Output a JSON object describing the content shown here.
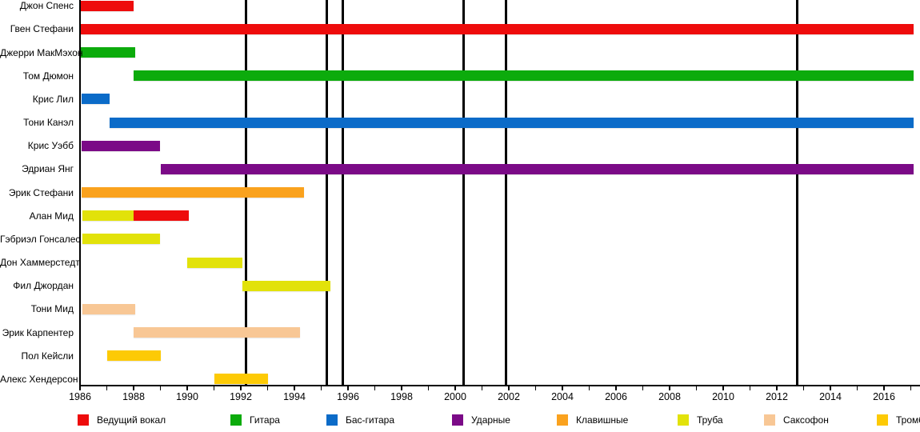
{
  "chart_data": {
    "type": "bar",
    "subtype": "gantt-timeline (band membership)",
    "title": "",
    "xlabel": "",
    "ylabel": "",
    "grid": false,
    "legend_position": "bottom",
    "x_axis": {
      "min": 1986,
      "max": 2017.4,
      "minor_tick_interval_years": 1,
      "tick_labels": [
        "1986",
        "1988",
        "1990",
        "1992",
        "1994",
        "1996",
        "1998",
        "2000",
        "2002",
        "2004",
        "2006",
        "2008",
        "2010",
        "2012",
        "2014",
        "2016"
      ],
      "tick_label_years": [
        1986,
        1988,
        1990,
        1992,
        1994,
        1996,
        1998,
        2000,
        2002,
        2004,
        2006,
        2008,
        2010,
        2012,
        2014,
        2016
      ]
    },
    "event_lines_years": [
      1992.2,
      1995.2,
      1995.8,
      2000.3,
      2001.9,
      2012.75
    ],
    "legend": [
      {
        "label": "Ведущий вокал",
        "color": "#ee0c0c"
      },
      {
        "label": "Гитара",
        "color": "#0cab0c"
      },
      {
        "label": "Бас-гитара",
        "color": "#0b6bc8"
      },
      {
        "label": "Ударные",
        "color": "#7b0a87"
      },
      {
        "label": "Клавишные",
        "color": "#faa21e"
      },
      {
        "label": "Труба",
        "color": "#e2e20a"
      },
      {
        "label": "Саксофон",
        "color": "#f8c795"
      },
      {
        "label": "Тромбон",
        "color": "#fdca05"
      }
    ],
    "members": [
      {
        "name": "Джон Спенс",
        "segments": [
          {
            "role": "Ведущий вокал",
            "start": 1986.0,
            "end": 1988.0
          }
        ]
      },
      {
        "name": "Гвен Стефани",
        "segments": [
          {
            "role": "Ведущий вокал",
            "start": 1986.0,
            "end": 2017.1
          }
        ]
      },
      {
        "name": "Джерри МакМэхон",
        "segments": [
          {
            "role": "Гитара",
            "start": 1986.0,
            "end": 1988.05
          }
        ]
      },
      {
        "name": "Том Дюмон",
        "segments": [
          {
            "role": "Гитара",
            "start": 1988.0,
            "end": 2017.1
          }
        ]
      },
      {
        "name": "Крис Лил",
        "segments": [
          {
            "role": "Бас-гитара",
            "start": 1986.05,
            "end": 1987.1
          }
        ]
      },
      {
        "name": "Тони Канэл",
        "segments": [
          {
            "role": "Бас-гитара",
            "start": 1987.1,
            "end": 2017.1
          }
        ]
      },
      {
        "name": "Крис Уэбб",
        "segments": [
          {
            "role": "Ударные",
            "start": 1986.05,
            "end": 1989.0
          }
        ]
      },
      {
        "name": "Эдриан Янг",
        "segments": [
          {
            "role": "Ударные",
            "start": 1989.0,
            "end": 2017.1
          }
        ]
      },
      {
        "name": "Эрик Стефани",
        "segments": [
          {
            "role": "Клавишные",
            "start": 1986.05,
            "end": 1994.35
          }
        ]
      },
      {
        "name": "Алан Мид",
        "segments": [
          {
            "role": "Труба",
            "start": 1986.1,
            "end": 1988.0
          },
          {
            "role": "Ведущий вокал",
            "start": 1988.0,
            "end": 1990.05
          }
        ]
      },
      {
        "name": "Гэбриэл Гонсалес",
        "segments": [
          {
            "role": "Труба",
            "start": 1986.1,
            "end": 1989.0
          }
        ]
      },
      {
        "name": "Дон Хаммерстедт",
        "segments": [
          {
            "role": "Труба",
            "start": 1990.0,
            "end": 1992.05
          }
        ]
      },
      {
        "name": "Фил Джордан",
        "segments": [
          {
            "role": "Труба",
            "start": 1992.05,
            "end": 1995.35
          }
        ]
      },
      {
        "name": "Тони Мид",
        "segments": [
          {
            "role": "Саксофон",
            "start": 1986.1,
            "end": 1988.05
          }
        ]
      },
      {
        "name": "Эрик Карпентер",
        "segments": [
          {
            "role": "Саксофон",
            "start": 1988.0,
            "end": 1994.2
          }
        ]
      },
      {
        "name": "Пол Кейсли",
        "segments": [
          {
            "role": "Тромбон",
            "start": 1987.0,
            "end": 1989.0
          }
        ]
      },
      {
        "name": "Алекс Хендерсон",
        "segments": [
          {
            "role": "Тромбон",
            "start": 1991.0,
            "end": 1993.0
          }
        ]
      }
    ]
  }
}
